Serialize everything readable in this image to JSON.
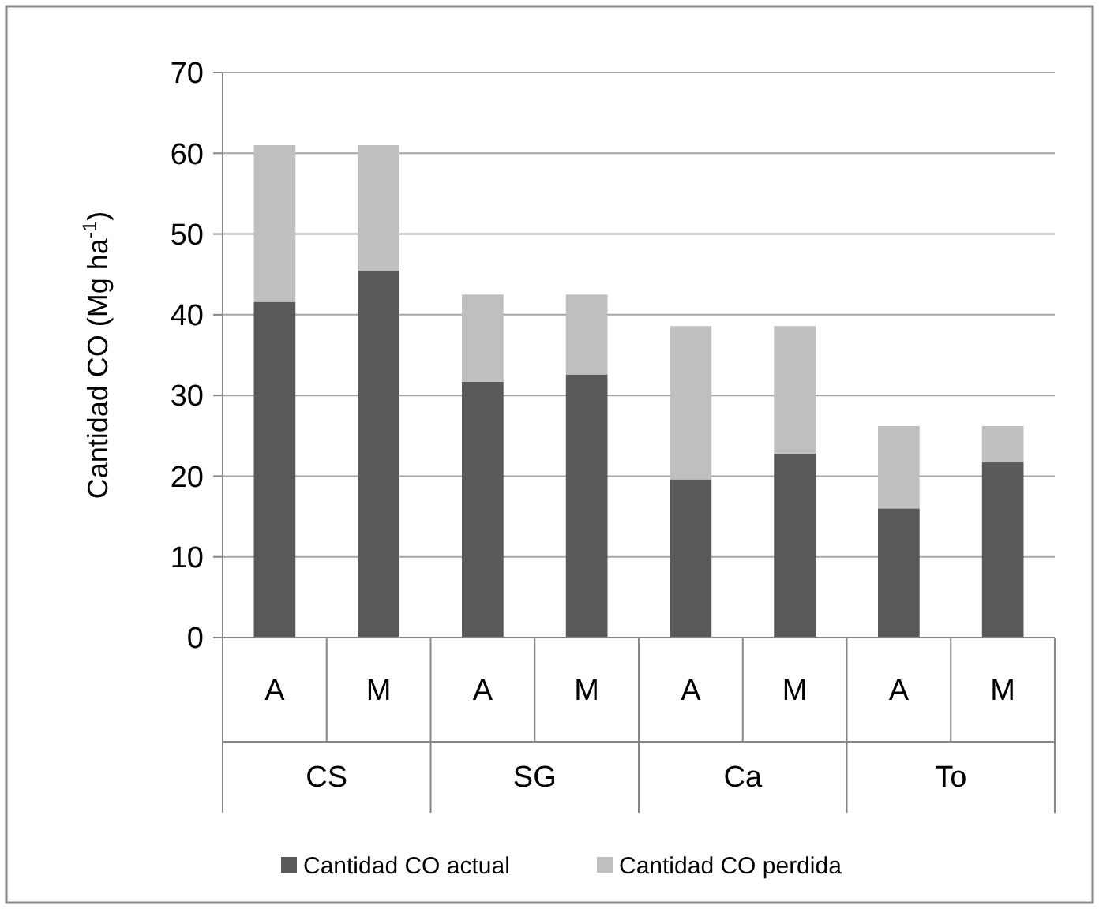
{
  "chart_data": {
    "type": "bar",
    "stacked": true,
    "ylabel": "Cantidad CO (Mg ha$^{-1}$)",
    "categories": [
      "A",
      "M",
      "A",
      "M",
      "A",
      "M",
      "A",
      "M"
    ],
    "annotations": [
      "CS",
      "SG",
      "Ca",
      "To"
    ],
    "series": [
      {
        "name": "Cantidad CO actual",
        "color": "#595959",
        "values": [
          41.6,
          45.5,
          31.7,
          32.6,
          19.6,
          22.8,
          16.0,
          21.7
        ]
      },
      {
        "name": "Cantidad CO perdida",
        "color": "#bfbfbf",
        "values": [
          19.4,
          15.5,
          10.8,
          9.9,
          19.0,
          15.8,
          10.2,
          4.5
        ]
      }
    ],
    "ylim": [
      0,
      70
    ],
    "yticks": [
      0,
      10,
      20,
      30,
      40,
      50,
      60,
      70
    ],
    "grid": "y",
    "legend": "bottom"
  }
}
